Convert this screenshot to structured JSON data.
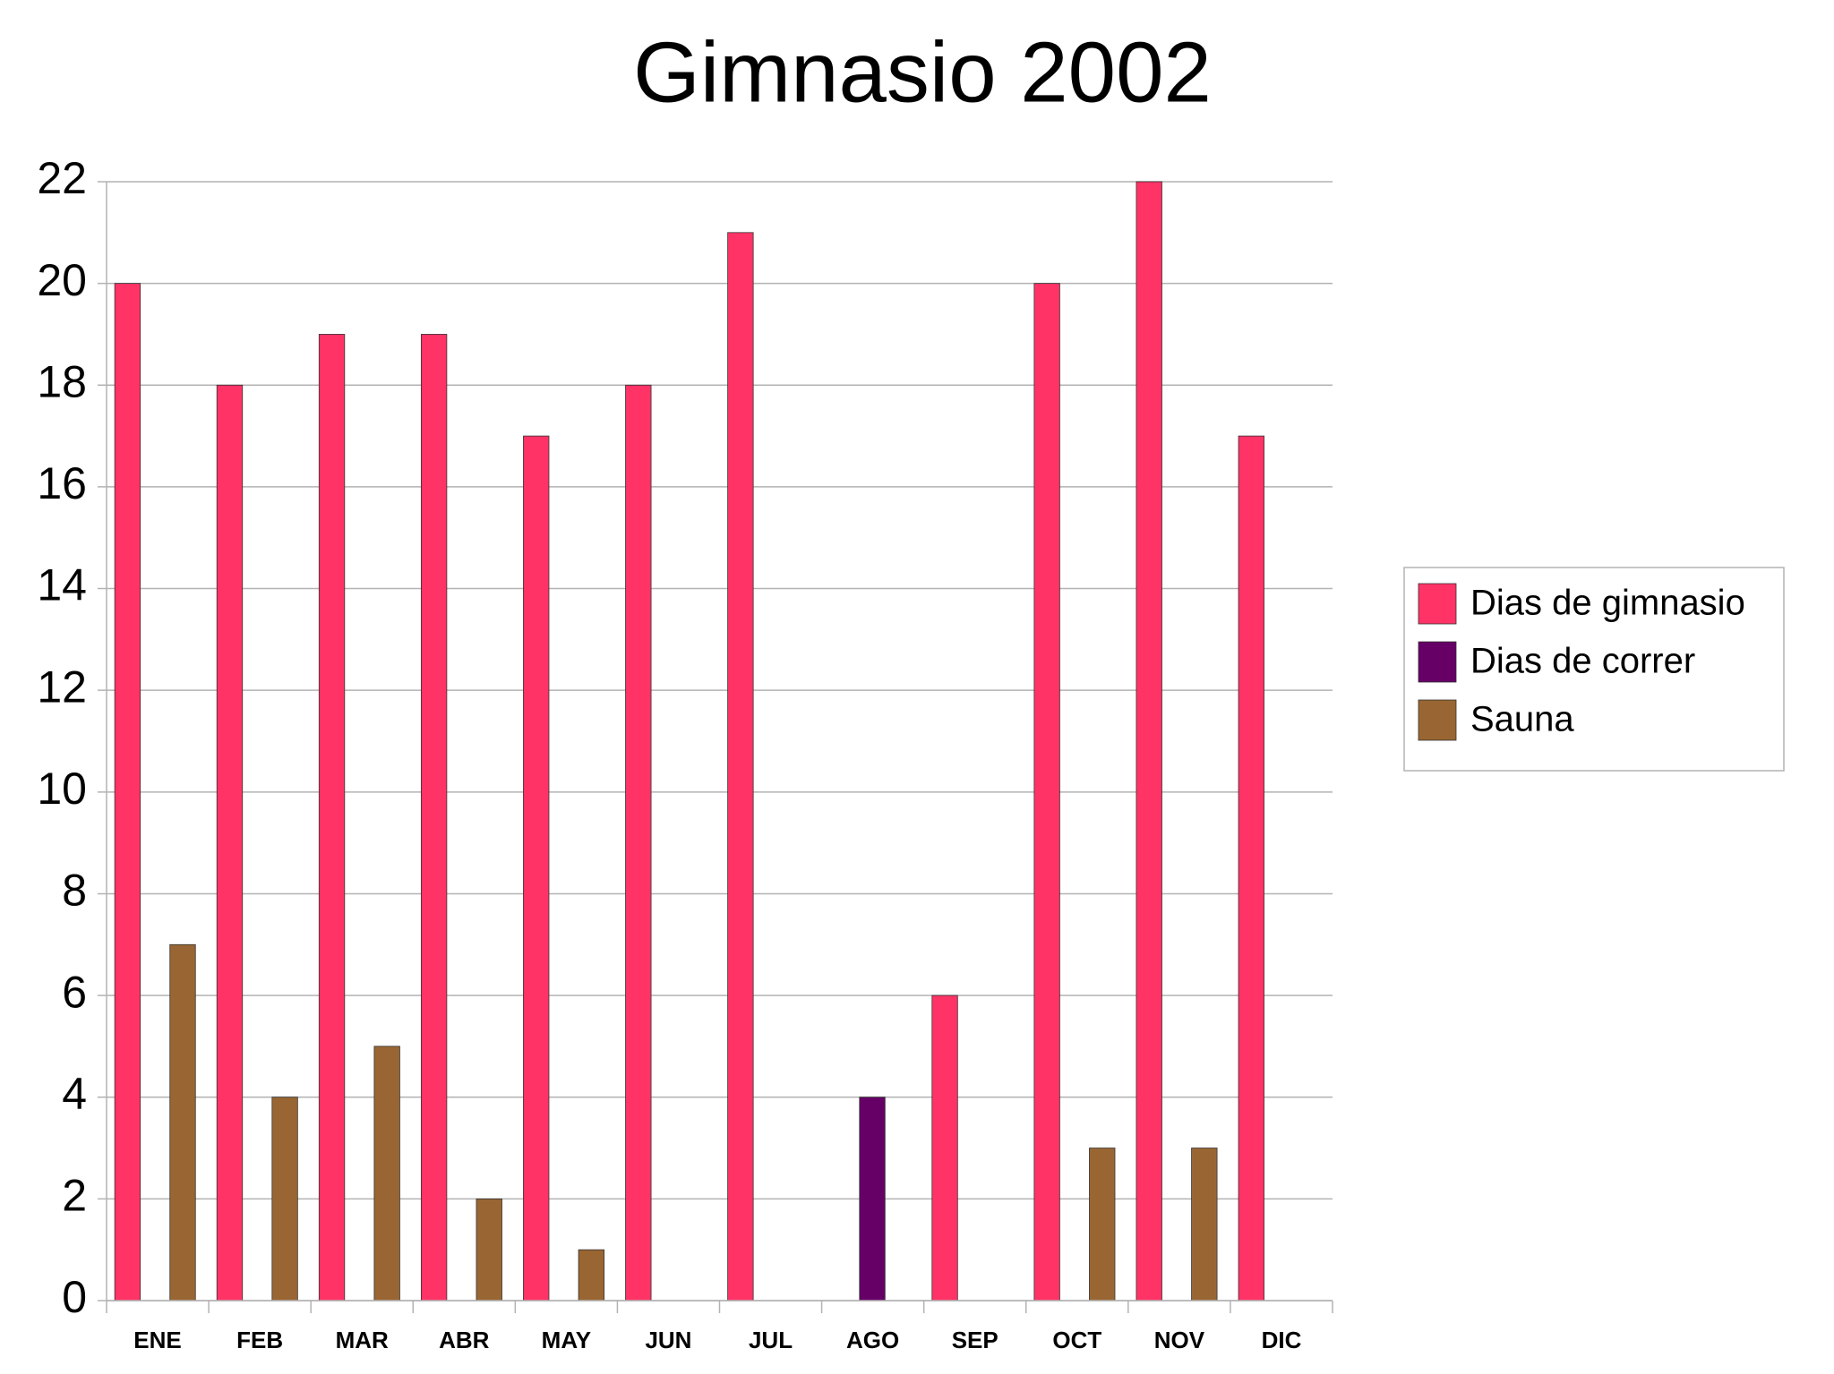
{
  "chart_data": {
    "type": "bar",
    "title": "Gimnasio 2002",
    "categories": [
      "ENE",
      "FEB",
      "MAR",
      "ABR",
      "MAY",
      "JUN",
      "JUL",
      "AGO",
      "SEP",
      "OCT",
      "NOV",
      "DIC"
    ],
    "series": [
      {
        "name": "Dias de gimnasio",
        "color": "#ff3366",
        "values": [
          20,
          18,
          19,
          19,
          17,
          18,
          21,
          null,
          6,
          20,
          22,
          17
        ]
      },
      {
        "name": "Dias de correr",
        "color": "#660066",
        "values": [
          null,
          null,
          null,
          null,
          null,
          null,
          null,
          4,
          null,
          null,
          null,
          null
        ]
      },
      {
        "name": "Sauna",
        "color": "#996633",
        "values": [
          7,
          4,
          5,
          2,
          1,
          null,
          null,
          null,
          null,
          3,
          3,
          null
        ]
      }
    ],
    "ylim": [
      0,
      22
    ],
    "yticks": [
      0,
      2,
      4,
      6,
      8,
      10,
      12,
      14,
      16,
      18,
      20,
      22
    ],
    "grid": true,
    "legend": "right"
  }
}
